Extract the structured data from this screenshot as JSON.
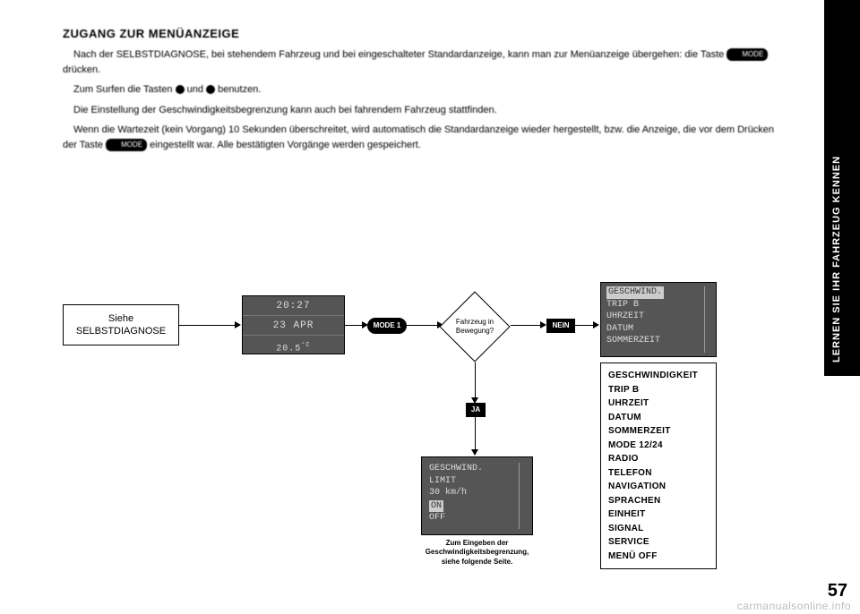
{
  "sideTab": "LERNEN SIE IHR FAHRZEUG KENNEN",
  "heading": "ZUGANG ZUR MENÜANZEIGE",
  "paragraphs": {
    "p1a": "Nach der SELBSTDIAGNOSE, bei stehendem Fahrzeug und bei eingeschalteter Standardanzeige, kann man zur Menüanzeige übergehen: die Taste ",
    "p1b": " drücken.",
    "p2a": "Zum Surfen die Tasten ",
    "p2b": " und ",
    "p2c": " benutzen.",
    "p3": "Die Einstellung der Geschwindigkeitsbegrenzung kann auch bei fahrendem Fahrzeug stattfinden.",
    "p4a": "Wenn die Wartezeit (kein Vorgang) 10 Sekunden überschreitet, wird automatisch die Standardanzeige wieder hergestellt, bzw. die Anzeige, die vor dem Drücken der Taste ",
    "p4b": " eingestellt war. Alle bestätigten Vorgänge werden gespeichert."
  },
  "keyLabel": "MODE",
  "selfDiag": {
    "l1": "Siehe",
    "l2": "SELBSTDIAGNOSE"
  },
  "clock": {
    "time": "20:27",
    "date": "23 APR",
    "temp": "20.5",
    "unit": "°C"
  },
  "modeBtn": "MODE 1",
  "diamond": {
    "l1": "Fahrzeug in",
    "l2": "Bewegung?"
  },
  "nein": "NEIN",
  "ja": "JA",
  "lcdMenu": {
    "hl": "GESCHWIND.",
    "l1": "TRIP B",
    "l2": "UHRZEIT",
    "l3": "DATUM",
    "l4": "SOMMERZEIT"
  },
  "lcdSpeed": {
    "l1": "GESCHWIND.",
    "l2": "LIMIT",
    "l3": "30 km/h",
    "hl": "ON",
    "l4": "OFF"
  },
  "lcdCaption": {
    "l1": "Zum Eingeben der",
    "l2": "Geschwindigkeitsbegrenzung,",
    "l3": "siehe folgende Seite."
  },
  "bigMenu": [
    "GESCHWINDIGKEIT",
    "TRIP B",
    "UHRZEIT",
    "DATUM",
    "SOMMERZEIT",
    "MODE 12/24",
    "RADIO",
    "TELEFON",
    "NAVIGATION",
    "SPRACHEN",
    "EINHEIT",
    "SIGNAL",
    "SERVICE",
    "MENÜ OFF"
  ],
  "pageNum": "57",
  "watermark": "carmanualsonline.info"
}
